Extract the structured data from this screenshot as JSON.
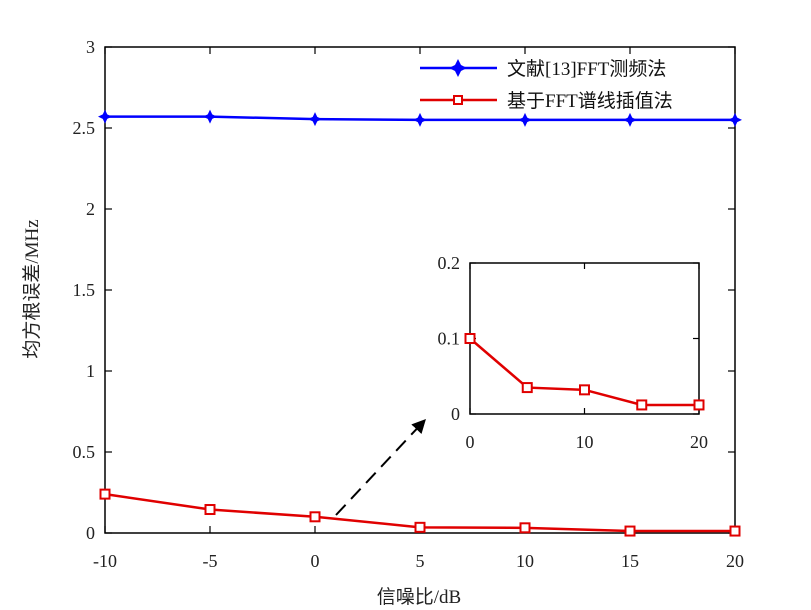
{
  "chart_data": {
    "type": "line",
    "xlabel": "信噪比/dB",
    "ylabel": "均方根误差/MHz",
    "x": [
      -10,
      -5,
      0,
      5,
      10,
      15,
      20
    ],
    "xlim": [
      -10,
      20
    ],
    "ylim": [
      0,
      3
    ],
    "xticks": [
      "-10",
      "-5",
      "0",
      "5",
      "10",
      "15",
      "20"
    ],
    "yticks": [
      "0",
      "0.5",
      "1",
      "1.5",
      "2",
      "2.5",
      "3"
    ],
    "grid": false,
    "legend_position": "top-right",
    "series": [
      {
        "name": "文献[13]FFT测频法",
        "color": "#0000ff",
        "marker": "star",
        "values": [
          2.57,
          2.57,
          2.555,
          2.55,
          2.55,
          2.55,
          2.55
        ]
      },
      {
        "name": "基于FFT谱线插值法",
        "color": "#e00000",
        "marker": "square",
        "values": [
          0.24,
          0.145,
          0.1,
          0.035,
          0.032,
          0.012,
          0.012
        ]
      }
    ],
    "inset": {
      "xlim": [
        0,
        20
      ],
      "ylim": [
        0,
        0.2
      ],
      "xticks": [
        "0",
        "10",
        "20"
      ],
      "yticks": [
        "0",
        "0.1",
        "0.2"
      ],
      "series": [
        {
          "name": "基于FFT谱线插值法",
          "color": "#e00000",
          "marker": "square",
          "x": [
            0,
            5,
            10,
            15,
            20
          ],
          "values": [
            0.1,
            0.035,
            0.032,
            0.012,
            0.012
          ]
        }
      ]
    }
  }
}
